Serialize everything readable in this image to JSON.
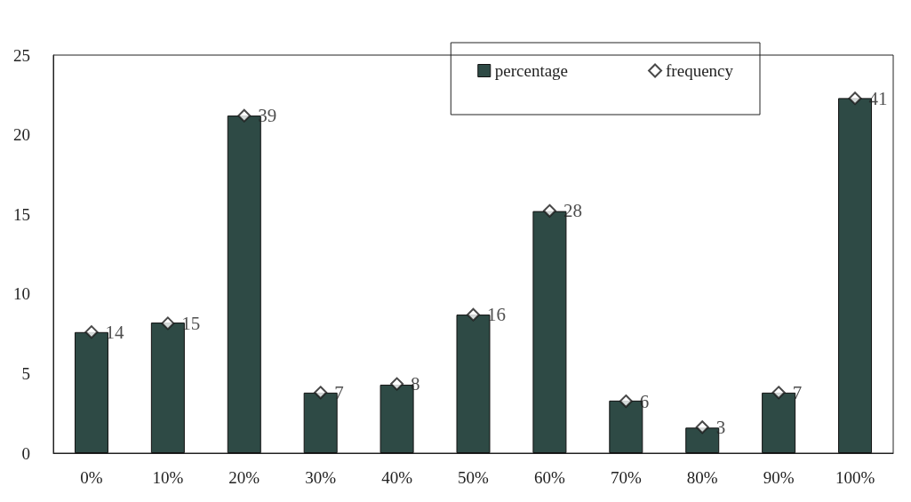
{
  "chart_data": {
    "type": "bar",
    "categories": [
      "0%",
      "10%",
      "20%",
      "30%",
      "40%",
      "50%",
      "60%",
      "70%",
      "80%",
      "90%",
      "100%"
    ],
    "series": [
      {
        "name": "percentage",
        "color": "#2e4a45",
        "values": [
          7.6,
          8.2,
          21.2,
          3.8,
          4.3,
          8.7,
          15.2,
          3.3,
          1.6,
          3.8,
          22.3
        ]
      },
      {
        "name": "frequency",
        "type": "scatter",
        "axis": "y2",
        "color": "#1a1a1a",
        "marker": "diamond",
        "data_labels": true,
        "values": [
          14,
          15,
          39,
          7,
          8,
          16,
          28,
          6,
          3,
          7,
          41
        ]
      }
    ],
    "ylim": [
      0,
      25
    ],
    "yticks": [
      0,
      5,
      10,
      15,
      20,
      25
    ],
    "y2lim": [
      0,
      46
    ],
    "grid": false,
    "legend": "top right"
  }
}
